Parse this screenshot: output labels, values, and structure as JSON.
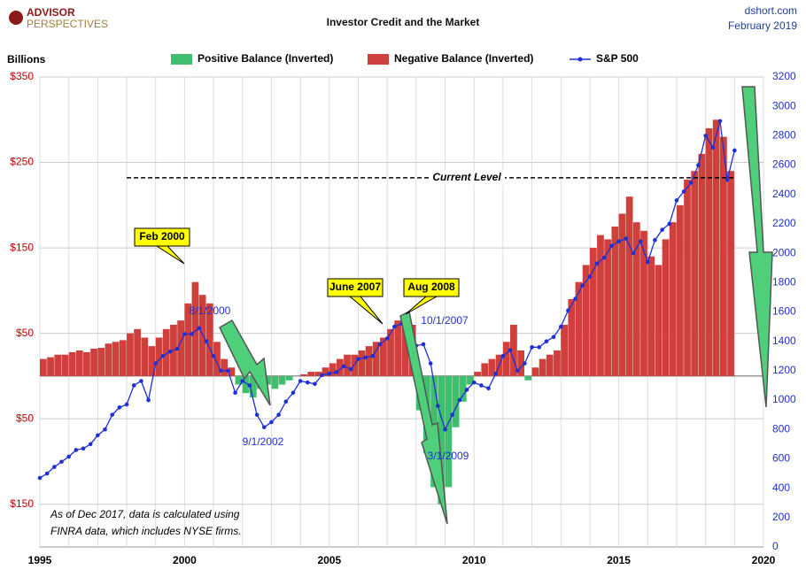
{
  "chart_data": {
    "type": "bar-line",
    "title": "Investor Credit and the Market",
    "logo": [
      "ADVISOR",
      "PERSPECTIVES"
    ],
    "source": [
      "dshort.com",
      "February 2019"
    ],
    "y_label": "Billions",
    "legend": [
      {
        "name": "Positive Balance (Inverted)",
        "color": "#3fbf6e"
      },
      {
        "name": "Negative Balance (Inverted)",
        "color": "#cf3f3b"
      },
      {
        "name": "S&P 500",
        "color": "#1f2fd6"
      }
    ],
    "xlim": [
      1995,
      2020
    ],
    "xticks": [
      1995,
      2000,
      2005,
      2010,
      2015,
      2020
    ],
    "xminorticks": [
      1995,
      1996,
      1997,
      1998,
      1999,
      2000,
      2001,
      2002,
      2003,
      2004,
      2005,
      2006,
      2007,
      2008,
      2009,
      2010,
      2011,
      2012,
      2013,
      2014,
      2015,
      2016,
      2017,
      2018,
      2019,
      2020
    ],
    "ylim": [
      -200,
      350
    ],
    "yticks": [
      {
        "value": 350,
        "label": "$350"
      },
      {
        "value": 250,
        "label": "$250"
      },
      {
        "value": 150,
        "label": "$150"
      },
      {
        "value": 50,
        "label": "$50"
      },
      {
        "value": -50,
        "label": "$50"
      },
      {
        "value": -150,
        "label": "$150"
      }
    ],
    "y2lim": [
      0,
      3200
    ],
    "y2ticks": [
      0,
      200,
      400,
      600,
      800,
      1000,
      1200,
      1400,
      1600,
      1800,
      2000,
      2200,
      2400,
      2600,
      2800,
      3000,
      3200
    ],
    "grid": true,
    "x": [
      1995,
      1995.25,
      1995.5,
      1995.75,
      1996,
      1996.25,
      1996.5,
      1996.75,
      1997,
      1997.25,
      1997.5,
      1997.75,
      1998,
      1998.25,
      1998.5,
      1998.75,
      1999,
      1999.25,
      1999.5,
      1999.75,
      2000,
      2000.25,
      2000.5,
      2000.75,
      2001,
      2001.25,
      2001.5,
      2001.75,
      2002,
      2002.25,
      2002.5,
      2002.75,
      2003,
      2003.25,
      2003.5,
      2003.75,
      2004,
      2004.25,
      2004.5,
      2004.75,
      2005,
      2005.25,
      2005.5,
      2005.75,
      2006,
      2006.25,
      2006.5,
      2006.75,
      2007,
      2007.25,
      2007.5,
      2007.75,
      2008,
      2008.25,
      2008.5,
      2008.75,
      2009,
      2009.25,
      2009.5,
      2009.75,
      2010,
      2010.25,
      2010.5,
      2010.75,
      2011,
      2011.25,
      2011.5,
      2011.75,
      2012,
      2012.25,
      2012.5,
      2012.75,
      2013,
      2013.25,
      2013.5,
      2013.75,
      2014,
      2014.25,
      2014.5,
      2014.75,
      2015,
      2015.25,
      2015.5,
      2015.75,
      2016,
      2016.25,
      2016.5,
      2016.75,
      2017,
      2017.25,
      2017.5,
      2017.75,
      2018,
      2018.25,
      2018.5,
      2018.75,
      2019
    ],
    "balance": [
      20,
      22,
      25,
      25,
      28,
      30,
      28,
      32,
      33,
      38,
      40,
      42,
      50,
      55,
      45,
      35,
      45,
      55,
      60,
      65,
      85,
      110,
      95,
      85,
      40,
      20,
      10,
      -10,
      -20,
      -25,
      -15,
      -10,
      -15,
      -10,
      -5,
      0,
      2,
      5,
      5,
      10,
      15,
      20,
      25,
      25,
      30,
      35,
      40,
      45,
      55,
      65,
      70,
      60,
      -40,
      -90,
      -130,
      -150,
      -130,
      -60,
      -30,
      -10,
      5,
      15,
      20,
      25,
      40,
      60,
      30,
      -5,
      10,
      20,
      25,
      30,
      60,
      90,
      110,
      130,
      150,
      165,
      160,
      175,
      190,
      210,
      180,
      170,
      140,
      130,
      160,
      180,
      200,
      230,
      240,
      260,
      290,
      300,
      280,
      240,
      null
    ],
    "sp500": {
      "axis": "y2",
      "values": [
        470,
        500,
        545,
        580,
        615,
        660,
        670,
        700,
        760,
        800,
        900,
        950,
        970,
        1100,
        1130,
        1000,
        1250,
        1300,
        1330,
        1350,
        1450,
        1450,
        1490,
        1400,
        1300,
        1200,
        1200,
        1050,
        1130,
        1100,
        900,
        815,
        850,
        900,
        990,
        1050,
        1130,
        1120,
        1110,
        1170,
        1180,
        1190,
        1230,
        1210,
        1280,
        1290,
        1300,
        1380,
        1420,
        1500,
        1520,
        1550,
        1370,
        1380,
        1250,
        960,
        800,
        900,
        1000,
        1070,
        1120,
        1100,
        1080,
        1180,
        1300,
        1340,
        1200,
        1250,
        1360,
        1360,
        1400,
        1430,
        1500,
        1610,
        1690,
        1780,
        1840,
        1930,
        1970,
        2050,
        2080,
        2100,
        2000,
        2080,
        1940,
        2090,
        2160,
        2200,
        2360,
        2420,
        2480,
        2600,
        2800,
        2720,
        2900,
        2500,
        2700
      ]
    },
    "current_level": {
      "value": 232,
      "label": "Current Level",
      "from": 1998,
      "to": 2019
    },
    "callouts": [
      "Feb 2000",
      "June 2007",
      "Aug 2008"
    ],
    "date_labels": [
      "8/1/2000",
      "9/1/2002",
      "10/1/2007",
      "3/1/2009"
    ],
    "note": [
      "As of Dec 2017,  data is calculated using",
      "FINRA data, which includes NYSE firms."
    ]
  }
}
